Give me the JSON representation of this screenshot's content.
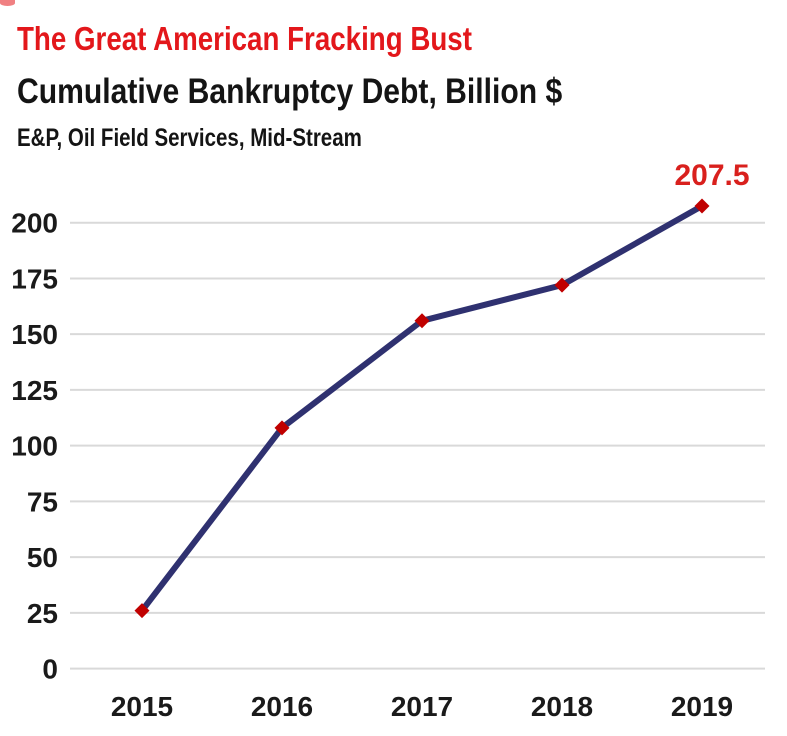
{
  "page": {
    "title": "The Great American Fracking Bust",
    "subtitle": "Cumulative Bankruptcy Debt, Billion $",
    "subheader": "E&P, Oil Field Services, Mid-Stream"
  },
  "colors": {
    "title_red": "#e3171b",
    "data_label_red": "#d9201d",
    "line_navy": "#2f3170",
    "marker_red": "#c00000",
    "gridline_gray": "#d9d9d9",
    "tick_text": "#1a1a1a"
  },
  "chart_data": {
    "type": "line",
    "title": "Cumulative Bankruptcy Debt, Billion $",
    "subtitle": "E&P, Oil Field Services, Mid-Stream",
    "categories": [
      "2015",
      "2016",
      "2017",
      "2018",
      "2019"
    ],
    "series": [
      {
        "name": "Cumulative bankruptcy debt, billion $",
        "values": [
          26,
          108,
          156,
          172,
          207.5
        ]
      }
    ],
    "last_value_label": "207.5",
    "yticks": [
      0,
      25,
      50,
      75,
      100,
      125,
      150,
      175,
      200
    ],
    "ylim": [
      0,
      215
    ],
    "xlabel": "",
    "ylabel": "",
    "grid": "horizontal",
    "legend": "none",
    "marker": "diamond"
  }
}
